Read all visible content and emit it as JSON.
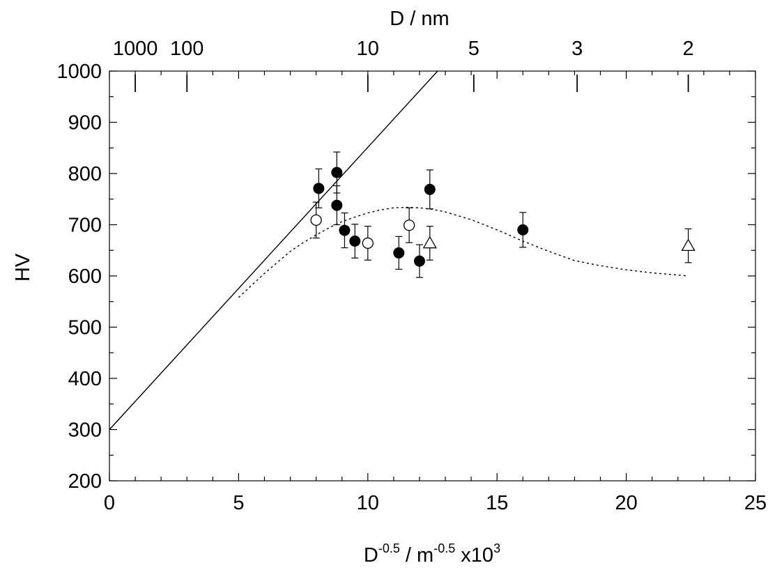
{
  "chart_data": {
    "type": "scatter",
    "xlabel": {
      "base": "D",
      "sup1": "-0.5",
      "mid": " / m",
      "sup2": "-0.5",
      "tail": " x10",
      "sup3": "3"
    },
    "ylabel": "HV",
    "top_xlabel": "D / nm",
    "xlim": [
      0,
      25
    ],
    "ylim": [
      200,
      1000
    ],
    "x_ticks": [
      0,
      5,
      10,
      15,
      20,
      25
    ],
    "y_ticks": [
      200,
      300,
      400,
      500,
      600,
      700,
      800,
      900,
      1000
    ],
    "top_ticks": [
      {
        "label": "1000",
        "x": 1.0
      },
      {
        "label": "100",
        "x": 3.0
      },
      {
        "label": "10",
        "x": 10.0
      },
      {
        "label": "5",
        "x": 14.1
      },
      {
        "label": "3",
        "x": 18.1
      },
      {
        "label": "2",
        "x": 22.4
      }
    ],
    "series": [
      {
        "marker": "filled-circle",
        "points": [
          {
            "x": 8.1,
            "y": 771,
            "err": 38
          },
          {
            "x": 8.8,
            "y": 802,
            "err": 40
          },
          {
            "x": 8.8,
            "y": 738,
            "err": 38
          },
          {
            "x": 9.1,
            "y": 689,
            "err": 34
          },
          {
            "x": 9.5,
            "y": 668,
            "err": 33
          },
          {
            "x": 11.2,
            "y": 645,
            "err": 32
          },
          {
            "x": 12.0,
            "y": 629,
            "err": 32
          },
          {
            "x": 12.4,
            "y": 769,
            "err": 38
          },
          {
            "x": 16.0,
            "y": 690,
            "err": 34
          }
        ]
      },
      {
        "marker": "open-circle",
        "points": [
          {
            "x": 8.0,
            "y": 709,
            "err": 35
          },
          {
            "x": 10.0,
            "y": 664,
            "err": 33
          },
          {
            "x": 11.6,
            "y": 699,
            "err": 34
          }
        ]
      },
      {
        "marker": "open-triangle",
        "points": [
          {
            "x": 12.4,
            "y": 664,
            "err": 33
          },
          {
            "x": 22.4,
            "y": 659,
            "err": 33
          }
        ]
      }
    ],
    "fit_line": {
      "style": "solid",
      "x": [
        0,
        12.7
      ],
      "y": [
        300,
        1000
      ]
    },
    "model_curve": {
      "style": "dotted",
      "x": [
        5.0,
        6.0,
        7.0,
        7.5,
        8.0,
        8.5,
        9.0,
        9.5,
        10.0,
        10.5,
        11.0,
        11.5,
        12.0,
        12.5,
        13.0,
        14.0,
        15.0,
        16.0,
        17.0,
        18.0,
        19.0,
        20.0,
        21.0,
        22.4
      ],
      "y": [
        558,
        605,
        648,
        665,
        680,
        694,
        706,
        715,
        723,
        729,
        733,
        734,
        733,
        730,
        725,
        710,
        690,
        668,
        648,
        630,
        620,
        612,
        606,
        600
      ]
    }
  }
}
